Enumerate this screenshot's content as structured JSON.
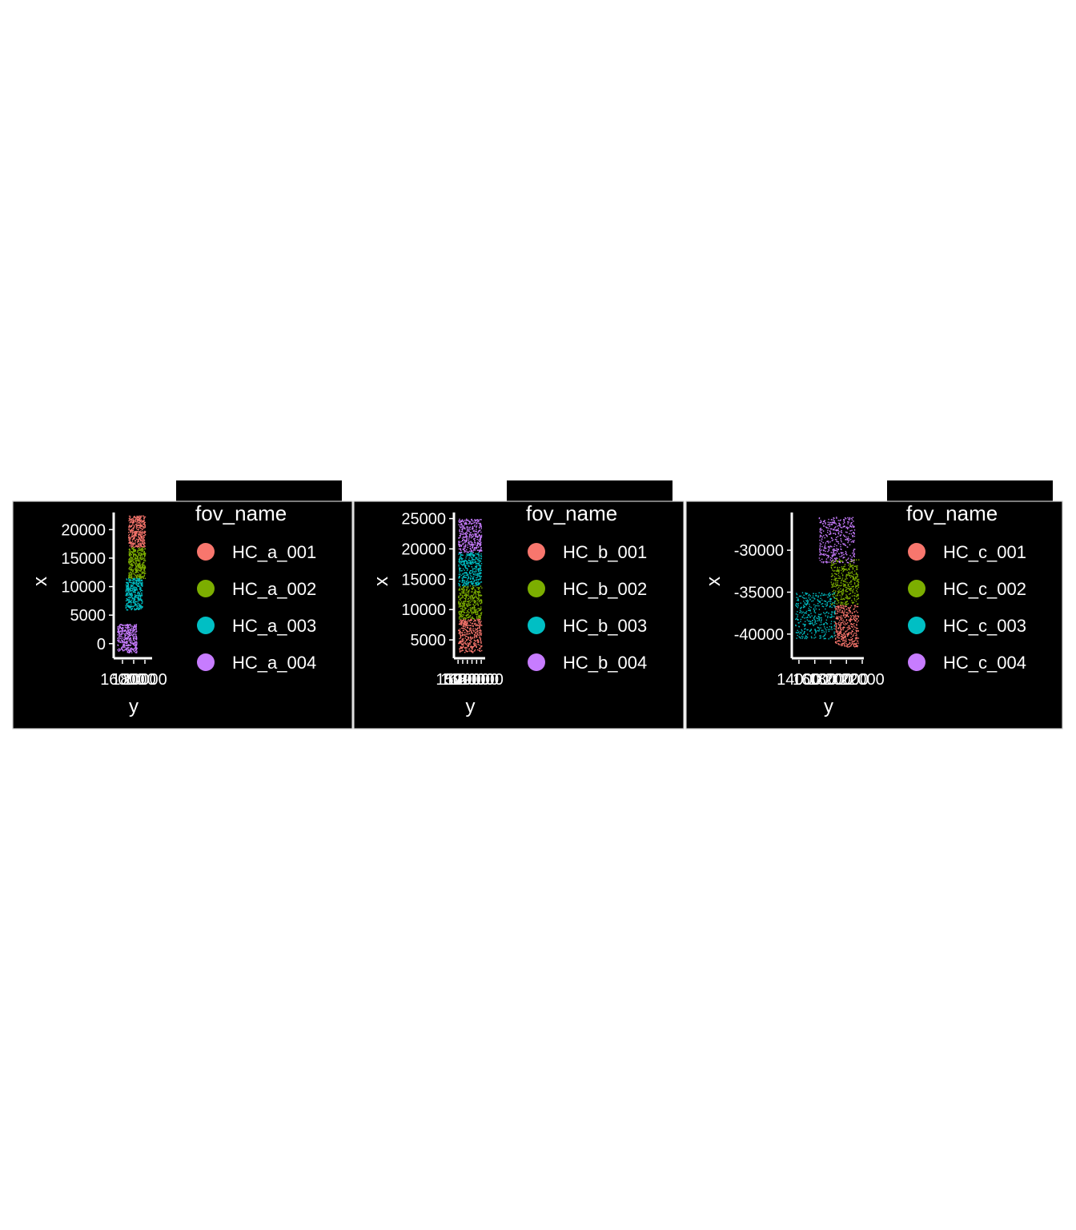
{
  "colors": {
    "background": "#000000",
    "foreground": "#ffffff",
    "panel_border": "#cccccc",
    "HC_001": "#F8766D",
    "HC_002": "#7CAE00",
    "HC_003": "#00BFC4",
    "HC_004": "#C77CFF"
  },
  "chart_data": [
    {
      "type": "scatter",
      "xlabel": "y",
      "ylabel": "x",
      "x_ticks": [
        "16000",
        "18000",
        "20000"
      ],
      "y_ticks": [
        "0",
        "5000",
        "10000",
        "15000",
        "20000"
      ],
      "xlim": [
        15000,
        21000
      ],
      "ylim": [
        -2000,
        23000
      ],
      "legend": {
        "title": "fov_name",
        "placement": "right",
        "entries": [
          "HC_a_001",
          "HC_a_002",
          "HC_a_003",
          "HC_a_004"
        ]
      },
      "series": [
        {
          "name": "HC_a_001",
          "color": "#F8766D",
          "region": {
            "x": [
              17000,
              20000
            ],
            "y": [
              17000,
              22500
            ]
          }
        },
        {
          "name": "HC_a_002",
          "color": "#7CAE00",
          "region": {
            "x": [
              17000,
              20000
            ],
            "y": [
              11500,
              17000
            ]
          }
        },
        {
          "name": "HC_a_003",
          "color": "#00BFC4",
          "region": {
            "x": [
              16500,
              19500
            ],
            "y": [
              6000,
              11500
            ]
          }
        },
        {
          "name": "HC_a_004",
          "color": "#C77CFF",
          "region": {
            "x": [
              15000,
              18500
            ],
            "y": [
              -1500,
              3500
            ]
          }
        }
      ]
    },
    {
      "type": "scatter",
      "xlabel": "y",
      "ylabel": "x",
      "x_ticks": [
        "15000",
        "16000",
        "17000",
        "18000",
        "19000",
        "20000"
      ],
      "y_ticks": [
        "5000",
        "10000",
        "15000",
        "20000",
        "25000"
      ],
      "xlim": [
        14800,
        20500
      ],
      "ylim": [
        2500,
        26000
      ],
      "legend": {
        "title": "fov_name",
        "placement": "right",
        "entries": [
          "HC_b_001",
          "HC_b_002",
          "HC_b_003",
          "HC_b_004"
        ]
      },
      "series": [
        {
          "name": "HC_b_001",
          "color": "#F8766D",
          "region": {
            "x": [
              15000,
              20000
            ],
            "y": [
              3000,
              8500
            ]
          }
        },
        {
          "name": "HC_b_002",
          "color": "#7CAE00",
          "region": {
            "x": [
              15000,
              20000
            ],
            "y": [
              8500,
              14000
            ]
          }
        },
        {
          "name": "HC_b_003",
          "color": "#00BFC4",
          "region": {
            "x": [
              15000,
              20000
            ],
            "y": [
              14000,
              19500
            ]
          }
        },
        {
          "name": "HC_b_004",
          "color": "#C77CFF",
          "region": {
            "x": [
              15000,
              20000
            ],
            "y": [
              19500,
              25000
            ]
          }
        }
      ]
    },
    {
      "type": "scatter",
      "xlabel": "y",
      "ylabel": "x",
      "x_ticks": [
        "14000",
        "16000",
        "18000",
        "20000",
        "22000"
      ],
      "y_ticks": [
        "-30000",
        "-35000",
        "-40000"
      ],
      "xlim": [
        13500,
        22000
      ],
      "ylim": [
        -42500,
        -25500
      ],
      "legend": {
        "title": "fov_name",
        "placement": "right",
        "entries": [
          "HC_c_001",
          "HC_c_002",
          "HC_c_003",
          "HC_c_004"
        ]
      },
      "series": [
        {
          "name": "HC_c_001",
          "color": "#F8766D",
          "region": {
            "x": [
              18500,
              21500
            ],
            "y": [
              -41500,
              -36500
            ]
          }
        },
        {
          "name": "HC_c_002",
          "color": "#7CAE00",
          "region": {
            "x": [
              18000,
              21500
            ],
            "y": [
              -36500,
              -31000
            ]
          }
        },
        {
          "name": "HC_c_003",
          "color": "#00BFC4",
          "region": {
            "x": [
              13500,
              18500
            ],
            "y": [
              -40500,
              -35000
            ]
          }
        },
        {
          "name": "HC_c_004",
          "color": "#C77CFF",
          "region": {
            "x": [
              16500,
              21000
            ],
            "y": [
              -31500,
              -26000
            ]
          }
        }
      ]
    }
  ]
}
